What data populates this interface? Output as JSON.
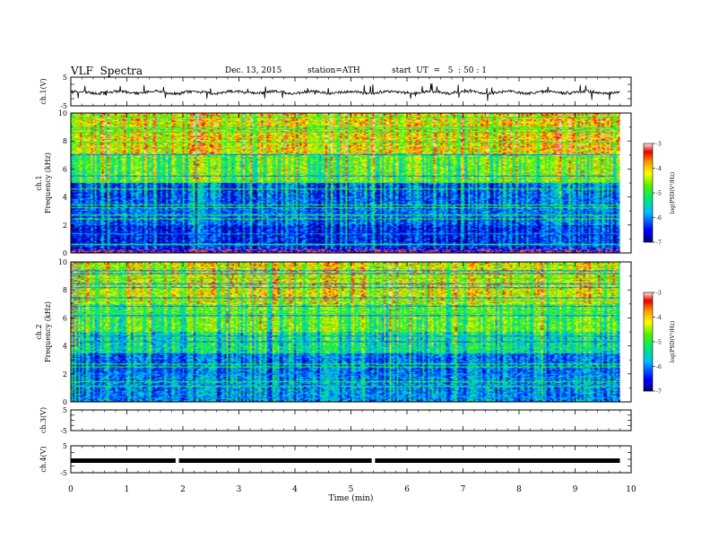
{
  "header": {
    "title": "VLF  Spectra",
    "date": "Dec. 13, 2015",
    "station": "station=ATH",
    "start": "start  UT  =   5  : 50 : 1"
  },
  "chart_data": [
    {
      "panel": "ch1-waveform",
      "type": "line",
      "ylabel": "ch.1(V)",
      "ylim": [
        -5,
        5
      ],
      "y_ticks": [
        "5",
        "-5"
      ],
      "xlim": [
        0,
        10
      ],
      "data_end_min": 9.8,
      "baseline_v": -0.3,
      "spike_amplitude_v": 3.0
    },
    {
      "panel": "ch1-spectrogram",
      "type": "heatmap",
      "ylabel": "ch.1\nFrequency  (kHz)",
      "ylim": [
        0,
        10
      ],
      "y_ticks": [
        "0",
        "2",
        "4",
        "6",
        "8",
        "10"
      ],
      "xlim": [
        0,
        10
      ],
      "data_end_min": 9.8,
      "colorbar": {
        "label": "log(PSD(V²/Hz)",
        "range": [
          -7,
          -3
        ],
        "ticks": [
          "-3",
          "-4",
          "-5",
          "-6",
          "-7"
        ]
      }
    },
    {
      "panel": "ch2-spectrogram",
      "type": "heatmap",
      "ylabel": "ch.2\nFrequency  (kHz)",
      "ylim": [
        0,
        10
      ],
      "y_ticks": [
        "0",
        "2",
        "4",
        "6",
        "8",
        "10"
      ],
      "xlim": [
        0,
        10
      ],
      "data_end_min": 9.8,
      "colorbar": {
        "label": "log(PSD(V²/Hz)",
        "range": [
          -7,
          -3
        ],
        "ticks": [
          "-3",
          "-4",
          "-5",
          "-6",
          "-7"
        ]
      }
    },
    {
      "panel": "ch3-waveform",
      "type": "line",
      "ylabel": "ch.3(V)",
      "ylim": [
        -5,
        5
      ],
      "y_ticks": [
        "5",
        "-5"
      ],
      "xlim": [
        0,
        10
      ],
      "empty": true
    },
    {
      "panel": "ch4-waveform",
      "type": "line",
      "ylabel": "ch.4(V)",
      "ylim": [
        -5,
        5
      ],
      "y_ticks": [
        "5",
        "-5"
      ],
      "xlim": [
        0,
        10
      ],
      "data_end_min": 9.8,
      "level_v": -0.5,
      "gaps_min": [
        1.9,
        5.4
      ]
    }
  ],
  "x_axis": {
    "label": "Time  (min)",
    "ticks": [
      "0",
      "1",
      "2",
      "3",
      "4",
      "5",
      "6",
      "7",
      "8",
      "9",
      "10"
    ]
  }
}
